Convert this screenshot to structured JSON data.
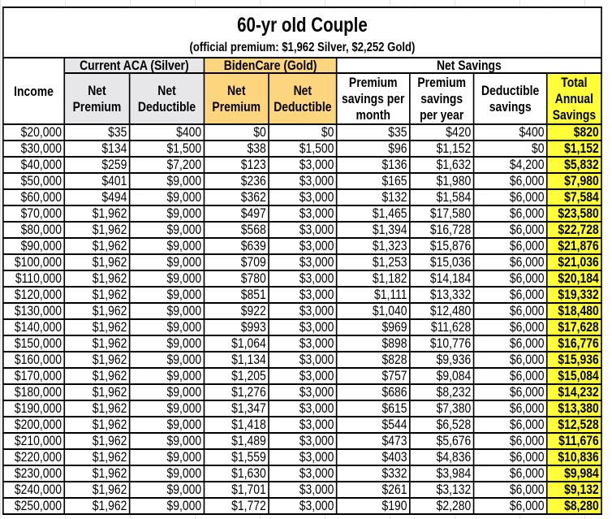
{
  "title": "60-yr old Couple",
  "subtitle": "(official premium: $1,962 Silver, $2,252 Gold)",
  "groups": {
    "silver": "Current ACA (Silver)",
    "gold": "BidenCare (Gold)",
    "net": "Net Savings"
  },
  "columns": [
    "Income",
    "Net Premium",
    "Net Deductible",
    "Net Premium",
    "Net Deductible",
    "Premium savings per month",
    "Premium savings per year",
    "Deductible savings",
    "Total Annual Savings"
  ],
  "colors": {
    "silver": "#e7e6e8",
    "gold": "#fdd57f",
    "total": "#ffff3a"
  },
  "rows": [
    [
      "$20,000",
      "$35",
      "$400",
      "$0",
      "$0",
      "$35",
      "$420",
      "$400",
      "$820"
    ],
    [
      "$30,000",
      "$134",
      "$1,500",
      "$38",
      "$1,500",
      "$96",
      "$1,152",
      "$0",
      "$1,152"
    ],
    [
      "$40,000",
      "$259",
      "$7,200",
      "$123",
      "$3,000",
      "$136",
      "$1,632",
      "$4,200",
      "$5,832"
    ],
    [
      "$50,000",
      "$401",
      "$9,000",
      "$236",
      "$3,000",
      "$165",
      "$1,980",
      "$6,000",
      "$7,980"
    ],
    [
      "$60,000",
      "$494",
      "$9,000",
      "$362",
      "$3,000",
      "$132",
      "$1,584",
      "$6,000",
      "$7,584"
    ],
    [
      "$70,000",
      "$1,962",
      "$9,000",
      "$497",
      "$3,000",
      "$1,465",
      "$17,580",
      "$6,000",
      "$23,580"
    ],
    [
      "$80,000",
      "$1,962",
      "$9,000",
      "$568",
      "$3,000",
      "$1,394",
      "$16,728",
      "$6,000",
      "$22,728"
    ],
    [
      "$90,000",
      "$1,962",
      "$9,000",
      "$639",
      "$3,000",
      "$1,323",
      "$15,876",
      "$6,000",
      "$21,876"
    ],
    [
      "$100,000",
      "$1,962",
      "$9,000",
      "$709",
      "$3,000",
      "$1,253",
      "$15,036",
      "$6,000",
      "$21,036"
    ],
    [
      "$110,000",
      "$1,962",
      "$9,000",
      "$780",
      "$3,000",
      "$1,182",
      "$14,184",
      "$6,000",
      "$20,184"
    ],
    [
      "$120,000",
      "$1,962",
      "$9,000",
      "$851",
      "$3,000",
      "$1,111",
      "$13,332",
      "$6,000",
      "$19,332"
    ],
    [
      "$130,000",
      "$1,962",
      "$9,000",
      "$922",
      "$3,000",
      "$1,040",
      "$12,480",
      "$6,000",
      "$18,480"
    ],
    [
      "$140,000",
      "$1,962",
      "$9,000",
      "$993",
      "$3,000",
      "$969",
      "$11,628",
      "$6,000",
      "$17,628"
    ],
    [
      "$150,000",
      "$1,962",
      "$9,000",
      "$1,064",
      "$3,000",
      "$898",
      "$10,776",
      "$6,000",
      "$16,776"
    ],
    [
      "$160,000",
      "$1,962",
      "$9,000",
      "$1,134",
      "$3,000",
      "$828",
      "$9,936",
      "$6,000",
      "$15,936"
    ],
    [
      "$170,000",
      "$1,962",
      "$9,000",
      "$1,205",
      "$3,000",
      "$757",
      "$9,084",
      "$6,000",
      "$15,084"
    ],
    [
      "$180,000",
      "$1,962",
      "$9,000",
      "$1,276",
      "$3,000",
      "$686",
      "$8,232",
      "$6,000",
      "$14,232"
    ],
    [
      "$190,000",
      "$1,962",
      "$9,000",
      "$1,347",
      "$3,000",
      "$615",
      "$7,380",
      "$6,000",
      "$13,380"
    ],
    [
      "$200,000",
      "$1,962",
      "$9,000",
      "$1,418",
      "$3,000",
      "$544",
      "$6,528",
      "$6,000",
      "$12,528"
    ],
    [
      "$210,000",
      "$1,962",
      "$9,000",
      "$1,489",
      "$3,000",
      "$473",
      "$5,676",
      "$6,000",
      "$11,676"
    ],
    [
      "$220,000",
      "$1,962",
      "$9,000",
      "$1,559",
      "$3,000",
      "$403",
      "$4,836",
      "$6,000",
      "$10,836"
    ],
    [
      "$230,000",
      "$1,962",
      "$9,000",
      "$1,630",
      "$3,000",
      "$332",
      "$3,984",
      "$6,000",
      "$9,984"
    ],
    [
      "$240,000",
      "$1,962",
      "$9,000",
      "$1,701",
      "$3,000",
      "$261",
      "$3,132",
      "$6,000",
      "$9,132"
    ],
    [
      "$250,000",
      "$1,962",
      "$9,000",
      "$1,772",
      "$3,000",
      "$190",
      "$2,280",
      "$6,000",
      "$8,280"
    ]
  ]
}
